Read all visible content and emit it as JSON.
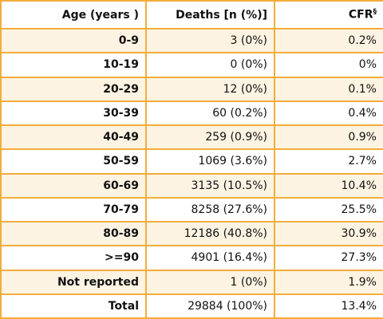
{
  "table": {
    "header": [
      "Age (years )",
      "Deaths [n (%)]",
      {
        "text": "CFR",
        "sup": "§"
      }
    ],
    "rows": [
      [
        "0-9",
        "3 (0%)",
        "0.2%"
      ],
      [
        "10-19",
        "0 (0%)",
        "0%"
      ],
      [
        "20-29",
        "12 (0%)",
        "0.1%"
      ],
      [
        "30-39",
        "60 (0.2%)",
        "0.4%"
      ],
      [
        "40-49",
        "259 (0.9%)",
        "0.9%"
      ],
      [
        "50-59",
        "1069 (3.6%)",
        "2.7%"
      ],
      [
        "60-69",
        "3135 (10.5%)",
        "10.4%"
      ],
      [
        "70-79",
        "8258 (27.6%)",
        "25.5%"
      ],
      [
        "80-89",
        "12186 (40.8%)",
        "30.9%"
      ],
      [
        ">=90",
        "4901 (16.4%)",
        "27.3%"
      ],
      [
        "Not reported",
        "1 (0%)",
        "1.9%"
      ],
      [
        "Total",
        "29884 (100%)",
        "13.4%"
      ]
    ]
  }
}
